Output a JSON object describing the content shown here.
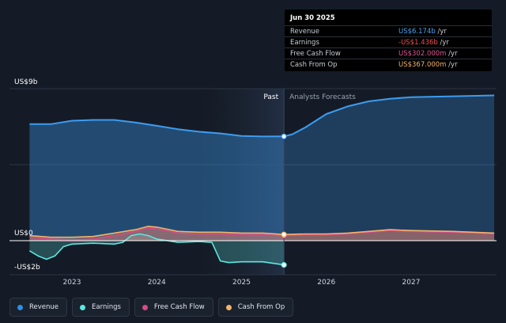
{
  "tooltip": {
    "date": "Jun 30 2025",
    "rows": [
      {
        "label": "Revenue",
        "value": "US$6.174b",
        "unit": " /yr",
        "color": "#4aa3f0"
      },
      {
        "label": "Earnings",
        "value": "-US$1.436b",
        "unit": " /yr",
        "color": "#f0504f"
      },
      {
        "label": "Free Cash Flow",
        "value": "US$302.000m",
        "unit": " /yr",
        "color": "#e0558f"
      },
      {
        "label": "Cash From Op",
        "value": "US$367.000m",
        "unit": " /yr",
        "color": "#f4b36a"
      }
    ]
  },
  "legend": [
    {
      "label": "Revenue",
      "color": "#2f8ee6"
    },
    {
      "label": "Earnings",
      "color": "#5ce8e0"
    },
    {
      "label": "Free Cash Flow",
      "color": "#d94a85"
    },
    {
      "label": "Cash From Op",
      "color": "#f3b36b"
    }
  ],
  "chart_data": {
    "type": "area",
    "ylabel_top": "US$9b",
    "ylabel_zero": "US$0",
    "ylabel_bottom": "-US$2b",
    "ylim": [
      -2,
      9
    ],
    "xlim": [
      2022.5,
      2027.98
    ],
    "x_ticks": [
      {
        "x": 2023,
        "label": "2023"
      },
      {
        "x": 2024,
        "label": "2024"
      },
      {
        "x": 2025,
        "label": "2025"
      },
      {
        "x": 2026,
        "label": "2026"
      },
      {
        "x": 2027,
        "label": "2027"
      }
    ],
    "past_label": "Past",
    "forecast_label": "Analysts Forecasts",
    "past_start": 2024.5,
    "divider_x": 2025.5,
    "series": [
      {
        "name": "Revenue",
        "color": "#3d9cf0",
        "past": [
          [
            2022.5,
            6.9
          ],
          [
            2022.75,
            6.9
          ],
          [
            2023.0,
            7.1
          ],
          [
            2023.25,
            7.15
          ],
          [
            2023.5,
            7.15
          ],
          [
            2023.75,
            7.0
          ],
          [
            2024.0,
            6.8
          ],
          [
            2024.25,
            6.6
          ],
          [
            2024.5,
            6.45
          ],
          [
            2024.75,
            6.35
          ],
          [
            2025.0,
            6.2
          ],
          [
            2025.25,
            6.17
          ],
          [
            2025.5,
            6.174
          ]
        ],
        "forecast": [
          [
            2025.5,
            6.174
          ],
          [
            2025.6,
            6.3
          ],
          [
            2025.75,
            6.7
          ],
          [
            2026.0,
            7.5
          ],
          [
            2026.25,
            7.95
          ],
          [
            2026.5,
            8.25
          ],
          [
            2026.75,
            8.4
          ],
          [
            2027.0,
            8.5
          ],
          [
            2027.5,
            8.55
          ],
          [
            2027.98,
            8.6
          ]
        ]
      },
      {
        "name": "Earnings",
        "color": "#5ce8e0",
        "past": [
          [
            2022.5,
            -0.6
          ],
          [
            2022.6,
            -0.9
          ],
          [
            2022.7,
            -1.1
          ],
          [
            2022.8,
            -0.9
          ],
          [
            2022.9,
            -0.35
          ],
          [
            2023.0,
            -0.2
          ],
          [
            2023.25,
            -0.15
          ],
          [
            2023.5,
            -0.2
          ],
          [
            2023.6,
            -0.1
          ],
          [
            2023.7,
            0.3
          ],
          [
            2023.8,
            0.4
          ],
          [
            2023.9,
            0.3
          ],
          [
            2024.0,
            0.1
          ],
          [
            2024.25,
            -0.1
          ],
          [
            2024.5,
            -0.05
          ],
          [
            2024.65,
            -0.1
          ],
          [
            2024.75,
            -1.2
          ],
          [
            2024.85,
            -1.3
          ],
          [
            2025.0,
            -1.25
          ],
          [
            2025.25,
            -1.25
          ],
          [
            2025.5,
            -1.436
          ]
        ],
        "forecast": []
      },
      {
        "name": "Free Cash Flow",
        "color": "#d94a85",
        "past": [
          [
            2022.5,
            0.2
          ],
          [
            2022.75,
            0.1
          ],
          [
            2023.0,
            0.05
          ],
          [
            2023.25,
            0.1
          ],
          [
            2023.5,
            0.3
          ],
          [
            2023.75,
            0.55
          ],
          [
            2023.9,
            0.75
          ],
          [
            2024.0,
            0.7
          ],
          [
            2024.25,
            0.45
          ],
          [
            2024.5,
            0.4
          ],
          [
            2024.75,
            0.4
          ],
          [
            2025.0,
            0.35
          ],
          [
            2025.25,
            0.35
          ],
          [
            2025.5,
            0.302
          ]
        ],
        "forecast": [
          [
            2025.5,
            0.302
          ],
          [
            2025.75,
            0.35
          ],
          [
            2026.0,
            0.35
          ],
          [
            2026.25,
            0.4
          ],
          [
            2026.5,
            0.5
          ],
          [
            2026.75,
            0.6
          ],
          [
            2027.0,
            0.55
          ],
          [
            2027.5,
            0.5
          ],
          [
            2027.98,
            0.4
          ]
        ]
      },
      {
        "name": "Cash From Op",
        "color": "#f3b36b",
        "past": [
          [
            2022.5,
            0.3
          ],
          [
            2022.75,
            0.2
          ],
          [
            2023.0,
            0.2
          ],
          [
            2023.25,
            0.25
          ],
          [
            2023.5,
            0.45
          ],
          [
            2023.75,
            0.65
          ],
          [
            2023.9,
            0.85
          ],
          [
            2024.0,
            0.8
          ],
          [
            2024.25,
            0.55
          ],
          [
            2024.5,
            0.5
          ],
          [
            2024.75,
            0.5
          ],
          [
            2025.0,
            0.45
          ],
          [
            2025.25,
            0.45
          ],
          [
            2025.5,
            0.367
          ]
        ],
        "forecast": [
          [
            2025.5,
            0.367
          ],
          [
            2025.75,
            0.4
          ],
          [
            2026.0,
            0.4
          ],
          [
            2026.25,
            0.45
          ],
          [
            2026.5,
            0.55
          ],
          [
            2026.75,
            0.65
          ],
          [
            2027.0,
            0.6
          ],
          [
            2027.5,
            0.55
          ],
          [
            2027.98,
            0.45
          ]
        ]
      }
    ]
  }
}
